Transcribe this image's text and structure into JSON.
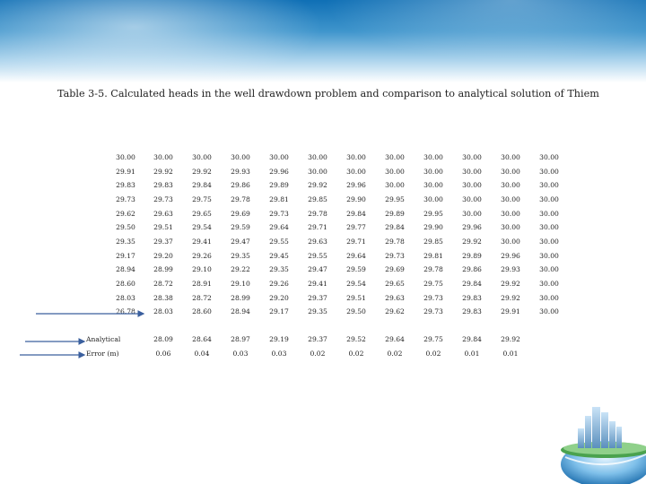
{
  "title": "Table 3-5.  Calculated heads in the well drawdown problem and  comparison to analytical solution of Thiem",
  "rows": [
    [
      "30.00",
      "30.00",
      "30.00",
      "30.00",
      "30.00",
      "30.00",
      "30.00",
      "30.00",
      "30.00",
      "30.00",
      "30.00",
      "30.00"
    ],
    [
      "29.91",
      "29.92",
      "29.92",
      "29.93",
      "29.96",
      "30.00",
      "30.00",
      "30.00",
      "30.00",
      "30.00",
      "30.00",
      "30.00"
    ],
    [
      "29.83",
      "29.83",
      "29.84",
      "29.86",
      "29.89",
      "29.92",
      "29.96",
      "30.00",
      "30.00",
      "30.00",
      "30.00",
      "30.00"
    ],
    [
      "29.73",
      "29.73",
      "29.75",
      "29.78",
      "29.81",
      "29.85",
      "29.90",
      "29.95",
      "30.00",
      "30.00",
      "30.00",
      "30.00"
    ],
    [
      "29.62",
      "29.63",
      "29.65",
      "29.69",
      "29.73",
      "29.78",
      "29.84",
      "29.89",
      "29.95",
      "30.00",
      "30.00",
      "30.00"
    ],
    [
      "29.50",
      "29.51",
      "29.54",
      "29.59",
      "29.64",
      "29.71",
      "29.77",
      "29.84",
      "29.90",
      "29.96",
      "30.00",
      "30.00"
    ],
    [
      "29.35",
      "29.37",
      "29.41",
      "29.47",
      "29.55",
      "29.63",
      "29.71",
      "29.78",
      "29.85",
      "29.92",
      "30.00",
      "30.00"
    ],
    [
      "29.17",
      "29.20",
      "29.26",
      "29.35",
      "29.45",
      "29.55",
      "29.64",
      "29.73",
      "29.81",
      "29.89",
      "29.96",
      "30.00"
    ],
    [
      "28.94",
      "28.99",
      "29.10",
      "29.22",
      "29.35",
      "29.47",
      "29.59",
      "29.69",
      "29.78",
      "29.86",
      "29.93",
      "30.00"
    ],
    [
      "28.60",
      "28.72",
      "28.91",
      "29.10",
      "29.26",
      "29.41",
      "29.54",
      "29.65",
      "29.75",
      "29.84",
      "29.92",
      "30.00"
    ],
    [
      "28.03",
      "28.38",
      "28.72",
      "28.99",
      "29.20",
      "29.37",
      "29.51",
      "29.63",
      "29.73",
      "29.83",
      "29.92",
      "30.00"
    ],
    [
      "26.78",
      "28.03",
      "28.60",
      "28.94",
      "29.17",
      "29.35",
      "29.50",
      "29.62",
      "29.73",
      "29.83",
      "29.91",
      "30.00"
    ]
  ],
  "analytical": {
    "label": "Analytical",
    "values": [
      "28.09",
      "28.64",
      "28.97",
      "29.19",
      "29.37",
      "29.52",
      "29.64",
      "29.75",
      "29.84",
      "29.92"
    ]
  },
  "error": {
    "label": "Error (m)",
    "values": [
      "0.06",
      "0.04",
      "0.03",
      "0.03",
      "0.02",
      "0.02",
      "0.02",
      "0.02",
      "0.01",
      "0.01"
    ]
  },
  "colors": {
    "arrow": "#3a5f9e",
    "banner": "#1f7fc2"
  }
}
